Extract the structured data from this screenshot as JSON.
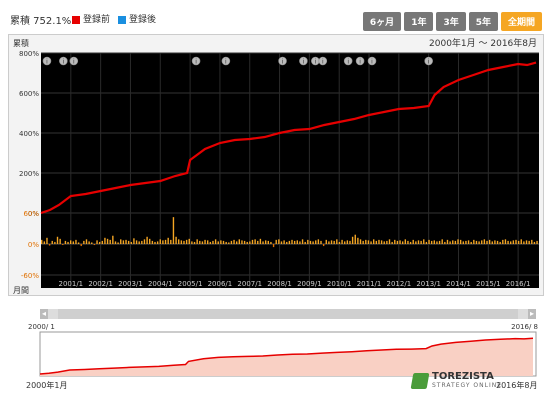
{
  "header": {
    "cumulative_label": "累積 752.1%",
    "legend": [
      {
        "label": "登録前",
        "color": "#e60000"
      },
      {
        "label": "登録後",
        "color": "#1a8fe0"
      }
    ],
    "range_buttons": [
      {
        "label": "6ヶ月",
        "active": false
      },
      {
        "label": "1年",
        "active": false
      },
      {
        "label": "3年",
        "active": false
      },
      {
        "label": "5年",
        "active": false
      },
      {
        "label": "全期間",
        "active": true
      }
    ]
  },
  "chart_data": {
    "type": "line",
    "title": "2000年1月 ～ 2016年8月",
    "ylabel": "累積",
    "ylim": [
      0,
      800
    ],
    "yticks": [
      "800%",
      "600%",
      "400%",
      "200%",
      "0%"
    ],
    "x_ticks": [
      "2001/1",
      "2002/1",
      "2003/1",
      "2004/1",
      "2005/1",
      "2006/1",
      "2007/1",
      "2008/1",
      "2009/1",
      "2010/1",
      "2011/1",
      "2012/1",
      "2013/1",
      "2014/1",
      "2015/1",
      "2016/1"
    ],
    "series": [
      {
        "name": "登録前",
        "color": "#e60000",
        "x": [
          2000.0,
          2000.3,
          2000.6,
          2001.0,
          2001.5,
          2002.0,
          2002.5,
          2003.0,
          2003.5,
          2004.0,
          2004.5,
          2004.9,
          2005.0,
          2005.5,
          2006.0,
          2006.5,
          2007.0,
          2007.5,
          2008.0,
          2008.5,
          2009.0,
          2009.5,
          2010.0,
          2010.5,
          2011.0,
          2011.5,
          2012.0,
          2012.5,
          2013.0,
          2013.2,
          2013.5,
          2014.0,
          2014.5,
          2015.0,
          2015.5,
          2016.0,
          2016.3,
          2016.6
        ],
        "values": [
          0,
          15,
          40,
          85,
          95,
          110,
          125,
          140,
          150,
          160,
          185,
          200,
          265,
          320,
          350,
          365,
          370,
          380,
          400,
          415,
          420,
          440,
          455,
          470,
          490,
          505,
          520,
          525,
          535,
          590,
          630,
          665,
          690,
          715,
          730,
          745,
          740,
          752
        ]
      }
    ],
    "monthly_ylabel": "月間",
    "monthly_yticks": [
      "60%",
      "0%",
      "-60%"
    ],
    "monthly_ylim": [
      -60,
      60
    ],
    "monthly_values": [
      8,
      5,
      12,
      -3,
      6,
      4,
      14,
      10,
      -2,
      6,
      4,
      7,
      5,
      8,
      3,
      -4,
      6,
      9,
      5,
      3,
      -2,
      7,
      4,
      6,
      12,
      10,
      8,
      16,
      5,
      3,
      9,
      7,
      8,
      6,
      4,
      11,
      7,
      5,
      6,
      9,
      14,
      10,
      6,
      4,
      5,
      9,
      7,
      8,
      12,
      8,
      52,
      14,
      9,
      7,
      6,
      8,
      10,
      5,
      4,
      9,
      6,
      5,
      8,
      7,
      4,
      6,
      9,
      5,
      7,
      6,
      4,
      3,
      6,
      8,
      5,
      9,
      7,
      6,
      4,
      5,
      8,
      9,
      6,
      10,
      5,
      7,
      6,
      4,
      -6,
      8,
      9,
      5,
      7,
      4,
      6,
      8,
      6,
      7,
      5,
      9,
      4,
      8,
      6,
      5,
      7,
      9,
      6,
      -4,
      8,
      5,
      7,
      6,
      9,
      4,
      8,
      5,
      7,
      6,
      14,
      18,
      12,
      9,
      6,
      8,
      7,
      5,
      9,
      6,
      8,
      7,
      5,
      6,
      9,
      4,
      8,
      6,
      7,
      5,
      9,
      6,
      4,
      8,
      5,
      7,
      6,
      9,
      4,
      8,
      6,
      7,
      5,
      6,
      9,
      4,
      8,
      5,
      7,
      6,
      9,
      8,
      5,
      6,
      7,
      4,
      8,
      6,
      5,
      7,
      9,
      6,
      8,
      5,
      7,
      6,
      4,
      8,
      9,
      6,
      5,
      7,
      8,
      6,
      9,
      5,
      7,
      6,
      8,
      4,
      6
    ],
    "event_markers": [
      2000.2,
      2000.75,
      2001.1,
      2005.2,
      2006.2,
      2008.1,
      2008.8,
      2009.2,
      2009.45,
      2010.3,
      2010.7,
      2011.1,
      2013.0
    ]
  },
  "navigator": {
    "start_label": "2000/ 1",
    "end_label": "2016/ 8",
    "footer_start": "2000年1月",
    "footer_end": "2016年8月"
  },
  "logo": {
    "name": "TOREZISTA",
    "tagline": "STRATEGY ONLINE"
  }
}
